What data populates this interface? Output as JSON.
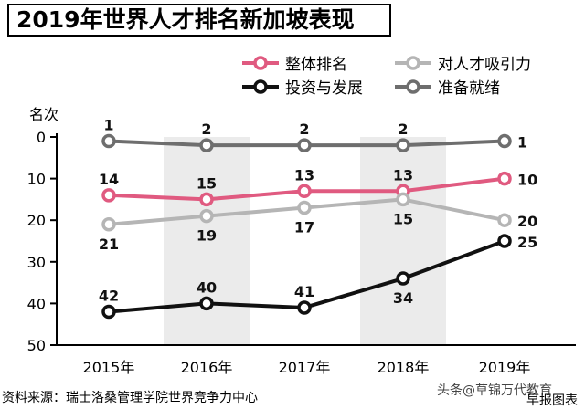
{
  "title": "2019年世界人才排名新加坡表现",
  "source": "资料来源：瑞士洛桑管理学院世界竞争力中心",
  "watermark": "头条@草锦万代教育",
  "credit": "早报图表",
  "chart_data": {
    "type": "line",
    "ylabel": "名次",
    "ylim": [
      0,
      50
    ],
    "y_inverted": true,
    "yticks": [
      0,
      10,
      20,
      30,
      40,
      50
    ],
    "categories": [
      "2015年",
      "2016年",
      "2017年",
      "2018年",
      "2019年"
    ],
    "legend_position": "top",
    "series": [
      {
        "name": "整体排名",
        "values": [
          14,
          15,
          13,
          13,
          10
        ],
        "color": "#e05a80",
        "marker_fill": "#ffffff"
      },
      {
        "name": "对人才吸引力",
        "values": [
          21,
          19,
          17,
          15,
          20
        ],
        "color": "#b5b5b5",
        "marker_fill": "#ffffff"
      },
      {
        "name": "投资与发展",
        "values": [
          42,
          40,
          41,
          34,
          25
        ],
        "color": "#111111",
        "marker_fill": "#ffffff"
      },
      {
        "name": "准备就绪",
        "values": [
          1,
          2,
          2,
          2,
          1
        ],
        "color": "#6e6e6e",
        "marker_fill": "#ffffff"
      }
    ],
    "shaded_categories": [
      "2016年",
      "2018年"
    ]
  }
}
